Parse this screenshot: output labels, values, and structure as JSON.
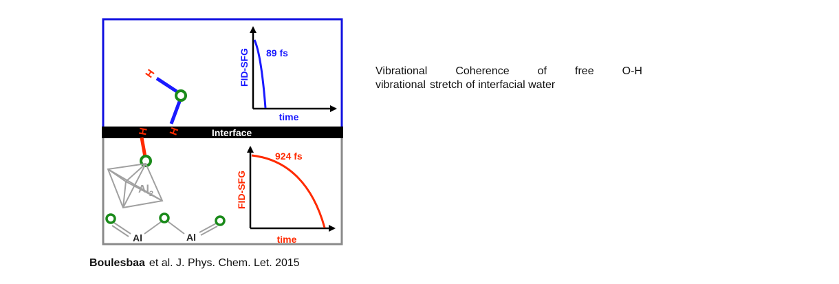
{
  "colors": {
    "top_panel_border": "#1010e0",
    "bottom_panel_border": "#8a8a8a",
    "interface_bar": "#000000",
    "free_oh_bond": "#ff2a00",
    "water_bond": "#1a1aff",
    "oxygen": "#1a8a1a",
    "octahedron": "#a0a0a0"
  },
  "diagram": {
    "interface_label": "Interface",
    "atoms": {
      "h_upper_free": "H",
      "h_upper_water": "H",
      "h_lower_bonded": "H",
      "al_octahedron": "Al",
      "al_octahedron_subscript": "2",
      "al_left": "Al",
      "al_right": "Al"
    },
    "top_plot": {
      "ylabel": "FID-SFG",
      "xlabel": "time",
      "annotation": "89 fs"
    },
    "bottom_plot": {
      "ylabel": "FID-SFG",
      "xlabel": "time",
      "annotation": "924 fs"
    }
  },
  "caption": {
    "line1_words": [
      "Vibrational",
      "Coherence",
      "of",
      "free",
      "O-H"
    ],
    "line2_words": [
      "vibrational",
      "stretch of interfacial water"
    ]
  },
  "citation": {
    "author": "Boulesbaa",
    "rest": "et al. J. Phys. Chem. Let. 2015"
  }
}
